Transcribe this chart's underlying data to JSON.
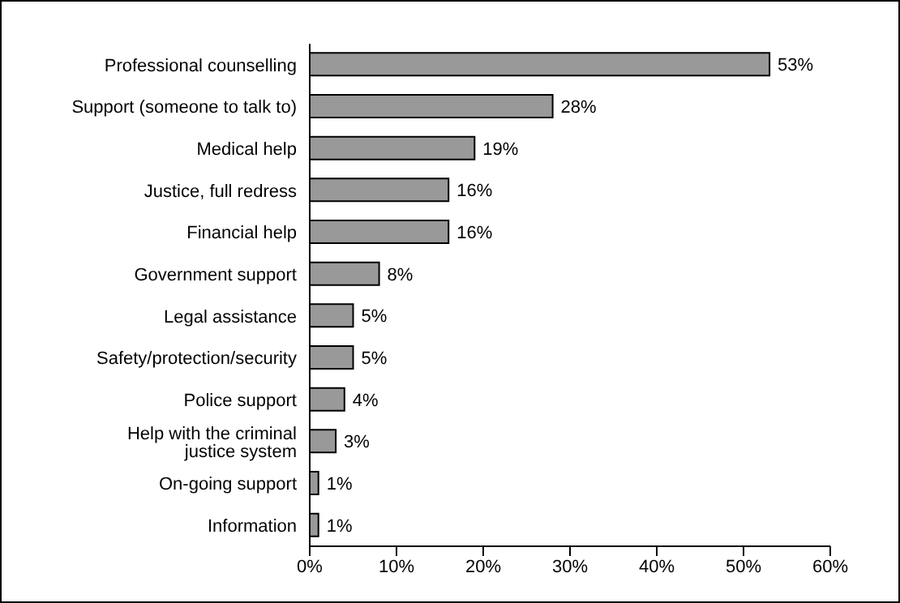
{
  "chart_data": {
    "type": "bar",
    "orientation": "horizontal",
    "categories": [
      "Professional counselling",
      "Support (someone to talk to)",
      "Medical help",
      "Justice, full redress",
      "Financial help",
      "Government support",
      "Legal assistance",
      "Safety/protection/security",
      "Police support",
      "Help with the criminal justice system",
      "On-going support",
      "Information"
    ],
    "values": [
      53,
      28,
      19,
      16,
      16,
      8,
      5,
      5,
      4,
      3,
      1,
      1
    ],
    "value_labels": [
      "53%",
      "28%",
      "19%",
      "16%",
      "16%",
      "8%",
      "5%",
      "5%",
      "4%",
      "3%",
      "1%",
      "1%"
    ],
    "color": "#999999",
    "xlim": [
      0,
      60
    ],
    "xticks": [
      {
        "value": 0,
        "label": "0%"
      },
      {
        "value": 10,
        "label": "10%"
      },
      {
        "value": 20,
        "label": "20%"
      },
      {
        "value": 30,
        "label": "30%"
      },
      {
        "value": 40,
        "label": "40%"
      },
      {
        "value": 50,
        "label": "50%"
      },
      {
        "value": 60,
        "label": "60%"
      }
    ],
    "grid": false,
    "legend": false
  }
}
